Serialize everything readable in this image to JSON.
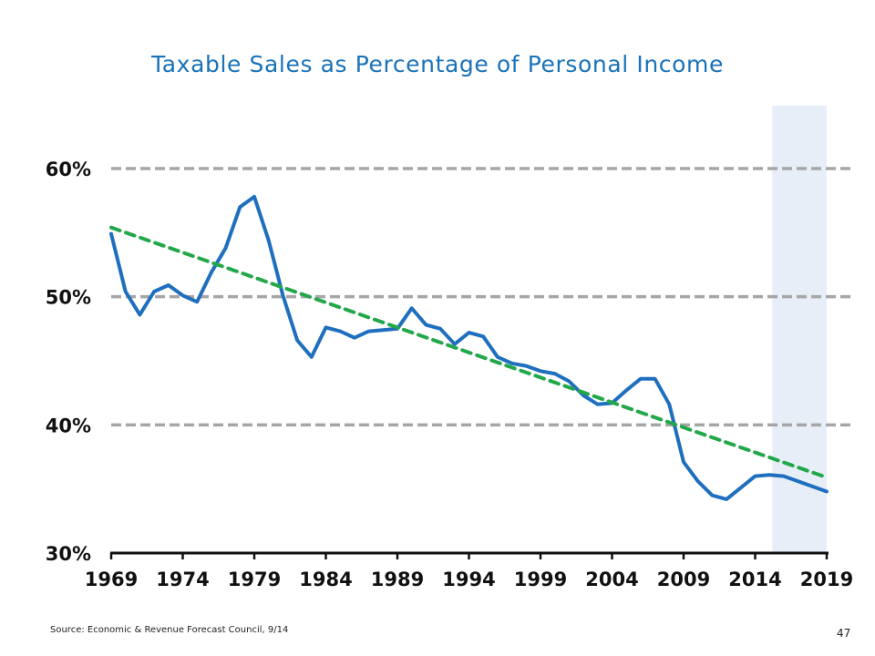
{
  "page": {
    "title": "Taxable Sales as Percentage of Personal Income",
    "source": "Source: Economic & Revenue Forecast Council, 9/14",
    "page_number": "47"
  },
  "chart_data": {
    "type": "line",
    "title": "Taxable Sales as Percentage of Personal Income",
    "xlabel": "",
    "ylabel": "",
    "xlim": [
      1969,
      2019
    ],
    "ylim": [
      30,
      60
    ],
    "y_ticks": [
      {
        "value": 30,
        "label": "30%"
      },
      {
        "value": 40,
        "label": "40%"
      },
      {
        "value": 50,
        "label": "50%"
      },
      {
        "value": 60,
        "label": "60%"
      }
    ],
    "x_ticks": [
      {
        "value": 1969,
        "label": "1969"
      },
      {
        "value": 1974,
        "label": "1974"
      },
      {
        "value": 1979,
        "label": "1979"
      },
      {
        "value": 1984,
        "label": "1984"
      },
      {
        "value": 1989,
        "label": "1989"
      },
      {
        "value": 1994,
        "label": "1994"
      },
      {
        "value": 1999,
        "label": "1999"
      },
      {
        "value": 2004,
        "label": "2004"
      },
      {
        "value": 2009,
        "label": "2009"
      },
      {
        "value": 2014,
        "label": "2014"
      },
      {
        "value": 2019,
        "label": "2019"
      }
    ],
    "gridlines": "dashed horizontal at 40%, 50%, 60%",
    "forecast_region": {
      "x_start": 2015.2,
      "x_end": 2019,
      "color": "#e8eef7"
    },
    "series": [
      {
        "color": "#1f6fbf",
        "style": "solid",
        "x": [
          1969,
          1970,
          1971,
          1972,
          1973,
          1974,
          1975,
          1976,
          1977,
          1978,
          1979,
          1980,
          1981,
          1982,
          1983,
          1984,
          1985,
          1986,
          1987,
          1988,
          1989,
          1990,
          1991,
          1992,
          1993,
          1994,
          1995,
          1996,
          1997,
          1998,
          1999,
          2000,
          2001,
          2002,
          2003,
          2004,
          2005,
          2006,
          2007,
          2008,
          2009,
          2010,
          2011,
          2012,
          2013,
          2014,
          2015,
          2016,
          2017,
          2018,
          2019
        ],
        "y": [
          54.9,
          50.4,
          48.6,
          50.4,
          50.9,
          50.1,
          49.6,
          51.9,
          53.8,
          57.0,
          57.8,
          54.4,
          50.1,
          46.6,
          45.3,
          47.6,
          47.3,
          46.8,
          47.3,
          47.4,
          47.5,
          49.1,
          47.8,
          47.5,
          46.3,
          47.2,
          46.9,
          45.3,
          44.8,
          44.6,
          44.2,
          44.0,
          43.4,
          42.3,
          41.6,
          41.7,
          42.7,
          43.6,
          43.6,
          41.6,
          37.1,
          35.6,
          34.5,
          34.2,
          35.1,
          36.0,
          36.1,
          36.0,
          35.6,
          35.2,
          34.8
        ]
      },
      {
        "color": "#22a84a",
        "style": "dashed",
        "x": [
          1969,
          2019
        ],
        "y": [
          55.4,
          35.9
        ]
      }
    ]
  }
}
